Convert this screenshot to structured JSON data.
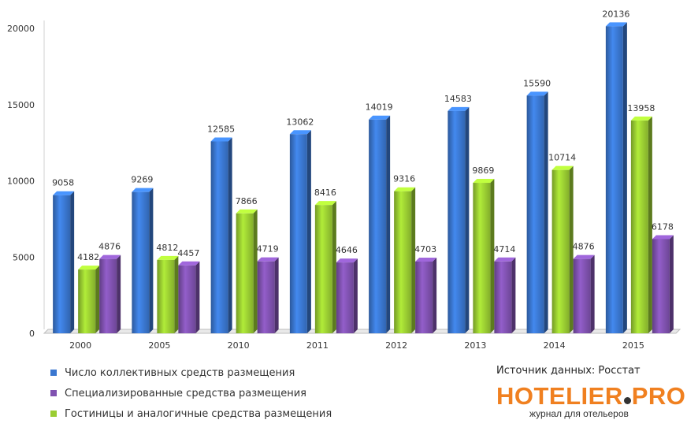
{
  "chart_data": {
    "type": "bar",
    "categories": [
      "2000",
      "2005",
      "2010",
      "2011",
      "2012",
      "2013",
      "2014",
      "2015"
    ],
    "series": [
      {
        "name": "Число коллективных средств размещения",
        "color": "#3a77d0",
        "values": [
          9058,
          9269,
          12585,
          13062,
          14019,
          14583,
          15590,
          20136
        ]
      },
      {
        "name": "Гостиницы и аналогичные средства размещения",
        "color": "#9acd32",
        "values": [
          4182,
          4812,
          7866,
          8416,
          9316,
          9869,
          10714,
          13958
        ]
      },
      {
        "name": "Специализированные  средства размещения",
        "color": "#8052b0",
        "values": [
          4876,
          4457,
          4719,
          4646,
          4703,
          4714,
          4876,
          6178
        ]
      }
    ],
    "yticks": [
      0,
      5000,
      10000,
      15000,
      20000
    ],
    "ylim": [
      0,
      20500
    ],
    "grid": false,
    "legend_placement": "bottom-left"
  },
  "legend": [
    {
      "label": "Число коллективных средств размещения",
      "color": "#3a77d0"
    },
    {
      "label": "Специализированные  средства размещения",
      "color": "#8052b0"
    },
    {
      "label": "Гостиницы и аналогичные средства размещения",
      "color": "#9acd32"
    }
  ],
  "source_text": "Источник данных: Росстат",
  "logo": {
    "text_left": "HOTELIER",
    "text_right": "PRO",
    "tagline": "журнал для отельеров"
  }
}
